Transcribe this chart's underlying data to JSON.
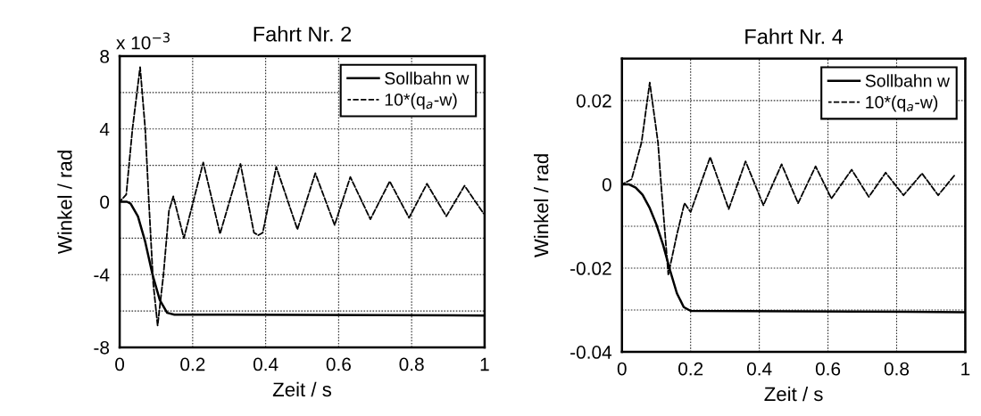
{
  "chart_data": [
    {
      "type": "line",
      "title": "Fahrt Nr. 2",
      "xlabel": "Zeit / s",
      "ylabel": "Winkel / rad",
      "annotations": [
        "x 10$^{−3}$"
      ],
      "xlim": [
        0,
        1
      ],
      "xticks": [
        0,
        0.2,
        0.4,
        0.6,
        0.8,
        1
      ],
      "ylim": [
        -8,
        8
      ],
      "yticks": [
        -8,
        {
          "value": -6,
          "label": null
        },
        -4,
        {
          "value": -2,
          "label": null
        },
        0,
        {
          "value": 2,
          "label": null
        },
        4,
        {
          "value": 6,
          "label": null
        },
        8
      ],
      "grid": true,
      "legend": "top right",
      "series": [
        {
          "name": "Sollbahn w",
          "color": "#000000",
          "line_style": "solid",
          "x": [
            0,
            0.02,
            0.03,
            0.05,
            0.07,
            0.09,
            0.11,
            0.13,
            0.15,
            1.0
          ],
          "values": [
            0,
            0,
            -0.1,
            -0.8,
            -2.2,
            -4.0,
            -5.4,
            -6.1,
            -6.2,
            -6.25
          ]
        },
        {
          "name": "10*(q$_{a}$-w)",
          "color": "#000000",
          "line_style": "dashed",
          "x": [
            0,
            0.018,
            0.035,
            0.056,
            0.07,
            0.08,
            0.092,
            0.104,
            0.12,
            0.135,
            0.147,
            0.176,
            0.229,
            0.275,
            0.331,
            0.368,
            0.38,
            0.392,
            0.429,
            0.487,
            0.536,
            0.589,
            0.632,
            0.687,
            0.74,
            0.793,
            0.842,
            0.895,
            0.945,
            0.997
          ],
          "values": [
            0,
            0.4,
            4.0,
            7.4,
            4.0,
            0,
            -4.5,
            -6.8,
            -4.0,
            -0.5,
            0.3,
            -2.0,
            2.16,
            -1.76,
            2.08,
            -1.7,
            -1.84,
            -1.7,
            1.92,
            -1.52,
            1.57,
            -1.28,
            1.36,
            -0.96,
            1.12,
            -0.88,
            0.99,
            -0.8,
            0.88,
            -0.64
          ]
        }
      ]
    },
    {
      "type": "line",
      "title": "Fahrt Nr. 4",
      "xlabel": "Zeit / s",
      "ylabel": "Winkel / rad",
      "xlim": [
        0,
        1
      ],
      "xticks": [
        0,
        0.2,
        0.4,
        0.6,
        0.8,
        1
      ],
      "ylim": [
        -0.04,
        0.03
      ],
      "yticks": [
        -0.04,
        {
          "value": -0.03,
          "label": null
        },
        -0.02,
        {
          "value": -0.01,
          "label": null
        },
        0,
        {
          "value": 0.01,
          "label": null
        },
        0.02
      ],
      "grid": true,
      "legend": "top right",
      "series": [
        {
          "name": "Sollbahn w",
          "color": "#000000",
          "line_style": "solid",
          "x": [
            0,
            0.02,
            0.04,
            0.06,
            0.08,
            0.1,
            0.12,
            0.14,
            0.16,
            0.18,
            0.2,
            1.0
          ],
          "values": [
            0,
            0,
            -0.0008,
            -0.0025,
            -0.0055,
            -0.0095,
            -0.0145,
            -0.0205,
            -0.026,
            -0.0293,
            -0.0302,
            -0.0305
          ]
        },
        {
          "name": "10*(q$_{a}$-w)",
          "color": "#000000",
          "line_style": "dashed",
          "x": [
            0,
            0.028,
            0.057,
            0.081,
            0.105,
            0.114,
            0.135,
            0.16,
            0.182,
            0.2,
            0.257,
            0.311,
            0.36,
            0.412,
            0.465,
            0.513,
            0.564,
            0.61,
            0.669,
            0.719,
            0.768,
            0.82,
            0.874,
            0.921,
            0.97
          ],
          "values": [
            0,
            0.0012,
            0.01,
            0.0243,
            0.01,
            0,
            -0.0215,
            -0.012,
            -0.0045,
            -0.0066,
            0.0065,
            -0.0059,
            0.0055,
            -0.005,
            0.0048,
            -0.0045,
            0.0043,
            -0.0034,
            0.0035,
            -0.003,
            0.0028,
            -0.0026,
            0.0026,
            -0.0026,
            0.0023
          ]
        }
      ]
    }
  ]
}
